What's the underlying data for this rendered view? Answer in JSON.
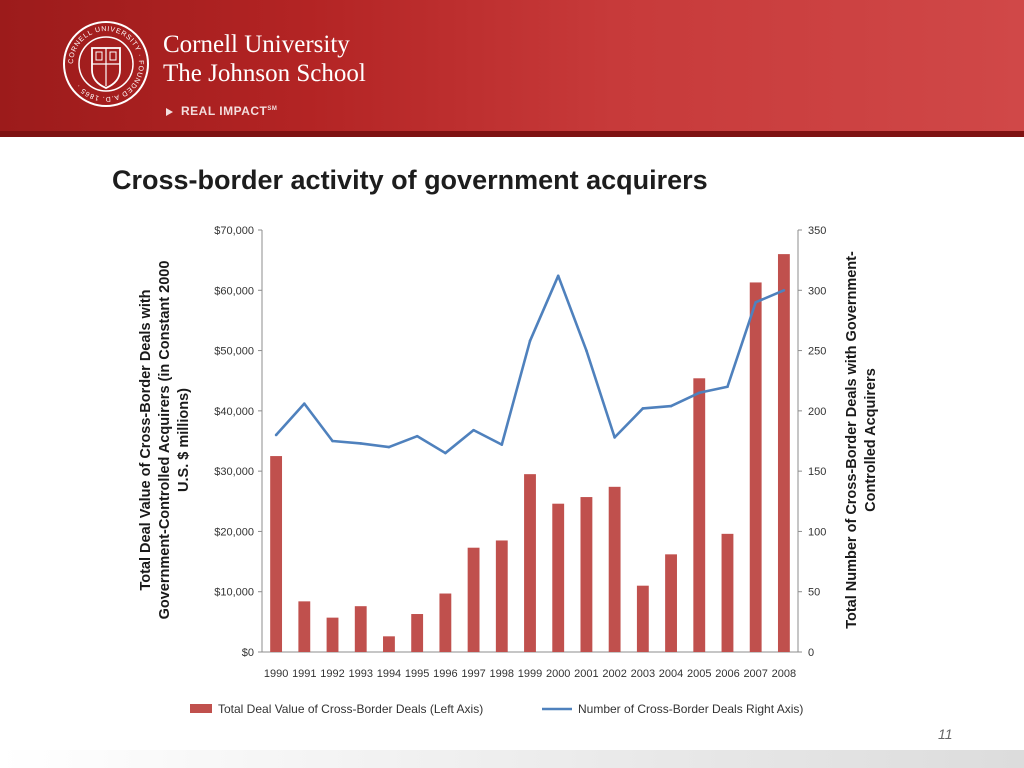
{
  "header": {
    "university": "Cornell University",
    "school": "The Johnson School",
    "tagline": "REAL IMPACT",
    "tagline_mark": "SM",
    "seal_text": "CORNELL UNIVERSITY · FOUNDED A.D. 1865 ·"
  },
  "slide": {
    "page_number": "11"
  },
  "chart_data": {
    "type": "bar",
    "title": "Cross-border activity of government acquirers",
    "categories": [
      "1990",
      "1991",
      "1992",
      "1993",
      "1994",
      "1995",
      "1996",
      "1997",
      "1998",
      "1999",
      "2000",
      "2001",
      "2002",
      "2003",
      "2004",
      "2005",
      "2006",
      "2007",
      "2008"
    ],
    "ylabel": "Total Deal Value of Cross-Border Deals with Government-Controlled Acquirers (in Constant 2000 U.S. $ millions)",
    "y2label": "Total Number of Cross-Border Deals with Government-Controlled Acquirers",
    "ylim": [
      0,
      70000
    ],
    "y2lim": [
      0,
      350
    ],
    "yticks": [
      "$0",
      "$10,000",
      "$20,000",
      "$30,000",
      "$40,000",
      "$50,000",
      "$60,000",
      "$70,000"
    ],
    "y2ticks": [
      "0",
      "50",
      "100",
      "150",
      "200",
      "250",
      "300",
      "350"
    ],
    "series": [
      {
        "name": "Total Deal Value of Cross-Border Deals (Left Axis)",
        "type": "bar",
        "axis": "left",
        "color": "#c0504d",
        "values": [
          32500,
          8400,
          5700,
          7600,
          2600,
          6300,
          9700,
          17300,
          18500,
          29500,
          24600,
          25700,
          27400,
          11000,
          16200,
          45400,
          19600,
          61300,
          66000
        ]
      },
      {
        "name": "Number of Cross-Border Deals Right Axis)",
        "type": "line",
        "axis": "right",
        "color": "#4f81bd",
        "values": [
          180,
          206,
          175,
          173,
          170,
          179,
          165,
          184,
          172,
          258,
          312,
          250,
          178,
          202,
          204,
          215,
          220,
          290,
          300
        ]
      }
    ],
    "grid": false,
    "legend": "bottom"
  }
}
